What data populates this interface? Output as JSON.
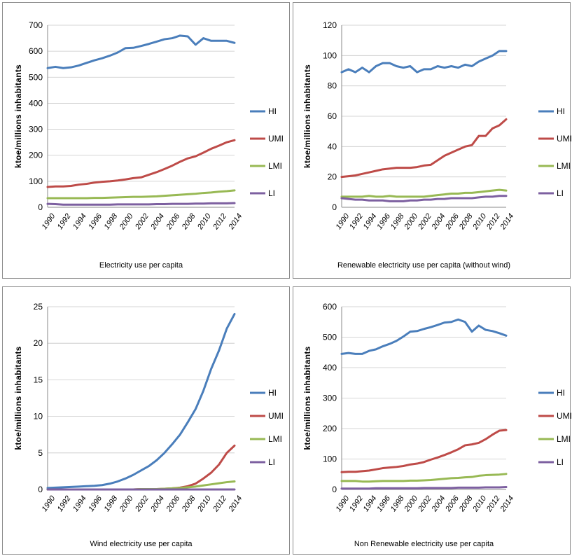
{
  "chart_data": [
    {
      "type": "line",
      "caption": "Electricity use per capita",
      "ylabel": "ktoe/millions inhabitants",
      "ylim": [
        0,
        700
      ],
      "yticks": [
        0,
        100,
        200,
        300,
        400,
        500,
        600,
        700
      ],
      "x": [
        1990,
        1991,
        1992,
        1993,
        1994,
        1995,
        1996,
        1997,
        1998,
        1999,
        2000,
        2001,
        2002,
        2003,
        2004,
        2005,
        2006,
        2007,
        2008,
        2009,
        2010,
        2011,
        2012,
        2013,
        2014
      ],
      "xticks": [
        "1990",
        "1992",
        "1994",
        "1996",
        "1998",
        "2000",
        "2002",
        "2004",
        "2006",
        "2008",
        "2010",
        "2012",
        "2014"
      ],
      "legend_position": "right",
      "series": [
        {
          "name": "HI",
          "color": "#4a7ebb",
          "values": [
            535,
            540,
            535,
            538,
            545,
            555,
            565,
            573,
            583,
            595,
            612,
            613,
            620,
            628,
            637,
            646,
            650,
            660,
            657,
            625,
            650,
            640,
            640,
            640,
            632
          ]
        },
        {
          "name": "UMI",
          "color": "#be4b48",
          "values": [
            78,
            80,
            80,
            82,
            87,
            90,
            95,
            98,
            100,
            103,
            107,
            112,
            115,
            125,
            135,
            147,
            160,
            175,
            188,
            196,
            210,
            225,
            237,
            250,
            258
          ]
        },
        {
          "name": "LMI",
          "color": "#98b954",
          "values": [
            35,
            35,
            35,
            35,
            35,
            35,
            36,
            36,
            37,
            38,
            39,
            40,
            40,
            41,
            42,
            44,
            46,
            48,
            50,
            52,
            55,
            57,
            60,
            62,
            65
          ]
        },
        {
          "name": "LI",
          "color": "#7d60a0",
          "values": [
            13,
            12,
            10,
            10,
            10,
            10,
            10,
            10,
            10,
            11,
            11,
            11,
            11,
            11,
            12,
            12,
            13,
            13,
            13,
            14,
            14,
            15,
            15,
            15,
            16
          ]
        }
      ]
    },
    {
      "type": "line",
      "caption": "Renewable electricity use per capita (without wind)",
      "ylabel": "ktoe/millions inhabitants",
      "ylim": [
        0,
        120
      ],
      "yticks": [
        0,
        20,
        40,
        60,
        80,
        100,
        120
      ],
      "x": [
        1990,
        1991,
        1992,
        1993,
        1994,
        1995,
        1996,
        1997,
        1998,
        1999,
        2000,
        2001,
        2002,
        2003,
        2004,
        2005,
        2006,
        2007,
        2008,
        2009,
        2010,
        2011,
        2012,
        2013,
        2014
      ],
      "xticks": [
        "1990",
        "1992",
        "1994",
        "1996",
        "1998",
        "2000",
        "2002",
        "2004",
        "2006",
        "2008",
        "2010",
        "2012",
        "2014"
      ],
      "legend_position": "right",
      "series": [
        {
          "name": "HI",
          "color": "#4a7ebb",
          "values": [
            89,
            91,
            89,
            92,
            89,
            93,
            95,
            95,
            93,
            92,
            93,
            89,
            91,
            91,
            93,
            92,
            93,
            92,
            94,
            93,
            96,
            98,
            100,
            103,
            103
          ]
        },
        {
          "name": "UMI",
          "color": "#be4b48",
          "values": [
            20,
            20.5,
            21,
            22,
            23,
            24,
            25,
            25.5,
            26,
            26,
            26,
            26.5,
            27.5,
            28,
            31,
            34,
            36,
            38,
            40,
            41,
            47,
            47,
            52,
            54,
            58
          ]
        },
        {
          "name": "LMI",
          "color": "#98b954",
          "values": [
            7,
            7,
            7,
            7,
            7.5,
            7,
            7,
            7.5,
            7,
            7,
            7,
            7,
            7,
            7.5,
            8,
            8.5,
            9,
            9,
            9.5,
            9.5,
            10,
            10.5,
            11,
            11.5,
            11
          ]
        },
        {
          "name": "LI",
          "color": "#7d60a0",
          "values": [
            6,
            5.5,
            5,
            5,
            4.5,
            4.5,
            4.5,
            4,
            4,
            4,
            4.5,
            4.5,
            5,
            5,
            5.5,
            5.5,
            6,
            6,
            6,
            6,
            6.5,
            7,
            7,
            7.5,
            7.5
          ]
        }
      ]
    },
    {
      "type": "line",
      "caption": "Wind electricity use per capita",
      "ylabel": "ktoe/millions inhabitants",
      "ylim": [
        0,
        25
      ],
      "yticks": [
        0,
        5,
        10,
        15,
        20,
        25
      ],
      "x": [
        1990,
        1991,
        1992,
        1993,
        1994,
        1995,
        1996,
        1997,
        1998,
        1999,
        2000,
        2001,
        2002,
        2003,
        2004,
        2005,
        2006,
        2007,
        2008,
        2009,
        2010,
        2011,
        2012,
        2013,
        2014
      ],
      "xticks": [
        "1990",
        "1992",
        "1994",
        "1996",
        "1998",
        "2000",
        "2002",
        "2004",
        "2006",
        "2008",
        "2010",
        "2012",
        "2014"
      ],
      "legend_position": "right",
      "series": [
        {
          "name": "HI",
          "color": "#4a7ebb",
          "values": [
            0.2,
            0.25,
            0.3,
            0.35,
            0.4,
            0.45,
            0.5,
            0.6,
            0.8,
            1.1,
            1.5,
            2,
            2.6,
            3.2,
            4,
            5,
            6.2,
            7.5,
            9.2,
            11,
            13.5,
            16.5,
            19,
            22,
            24
          ]
        },
        {
          "name": "UMI",
          "color": "#be4b48",
          "values": [
            0,
            0,
            0,
            0,
            0,
            0,
            0,
            0,
            0,
            0,
            0,
            0,
            0.05,
            0.05,
            0.05,
            0.1,
            0.15,
            0.25,
            0.45,
            0.8,
            1.5,
            2.3,
            3.4,
            5,
            6
          ]
        },
        {
          "name": "LMI",
          "color": "#98b954",
          "values": [
            0,
            0,
            0,
            0,
            0,
            0,
            0,
            0,
            0,
            0,
            0,
            0,
            0.05,
            0.05,
            0.05,
            0.1,
            0.15,
            0.2,
            0.3,
            0.4,
            0.55,
            0.7,
            0.85,
            1,
            1.1
          ]
        },
        {
          "name": "LI",
          "color": "#7d60a0",
          "values": [
            0,
            0,
            0,
            0,
            0,
            0,
            0,
            0,
            0,
            0,
            0,
            0,
            0,
            0,
            0,
            0,
            0,
            0,
            0,
            0,
            0,
            0,
            0,
            0,
            0
          ]
        }
      ]
    },
    {
      "type": "line",
      "caption": "Non Renewable electricity use per capita",
      "ylabel": "ktoe/millions inhabitants",
      "ylim": [
        0,
        600
      ],
      "yticks": [
        0,
        100,
        200,
        300,
        400,
        500,
        600
      ],
      "x": [
        1990,
        1991,
        1992,
        1993,
        1994,
        1995,
        1996,
        1997,
        1998,
        1999,
        2000,
        2001,
        2002,
        2003,
        2004,
        2005,
        2006,
        2007,
        2008,
        2009,
        2010,
        2011,
        2012,
        2013,
        2014
      ],
      "xticks": [
        "1990",
        "1992",
        "1994",
        "1996",
        "1998",
        "2000",
        "2002",
        "2004",
        "2006",
        "2008",
        "2010",
        "2012",
        "2014"
      ],
      "legend_position": "right",
      "series": [
        {
          "name": "HI",
          "color": "#4a7ebb",
          "values": [
            445,
            448,
            445,
            445,
            455,
            460,
            470,
            478,
            488,
            502,
            518,
            520,
            527,
            533,
            540,
            548,
            550,
            558,
            550,
            518,
            538,
            524,
            520,
            513,
            505
          ]
        },
        {
          "name": "UMI",
          "color": "#be4b48",
          "values": [
            57,
            58,
            58,
            60,
            62,
            66,
            70,
            72,
            74,
            77,
            82,
            85,
            90,
            98,
            105,
            113,
            122,
            132,
            145,
            148,
            153,
            165,
            180,
            193,
            195
          ]
        },
        {
          "name": "LMI",
          "color": "#98b954",
          "values": [
            28,
            28,
            28,
            26,
            26,
            27,
            28,
            28,
            28,
            28,
            29,
            29,
            30,
            31,
            33,
            35,
            37,
            38,
            40,
            41,
            45,
            47,
            48,
            49,
            51
          ]
        },
        {
          "name": "LI",
          "color": "#7d60a0",
          "values": [
            3,
            3,
            3,
            3,
            3,
            4,
            4,
            4,
            4,
            4,
            4,
            4,
            5,
            5,
            5,
            5,
            5,
            6,
            6,
            6,
            6,
            7,
            7,
            7,
            8
          ]
        }
      ]
    }
  ]
}
